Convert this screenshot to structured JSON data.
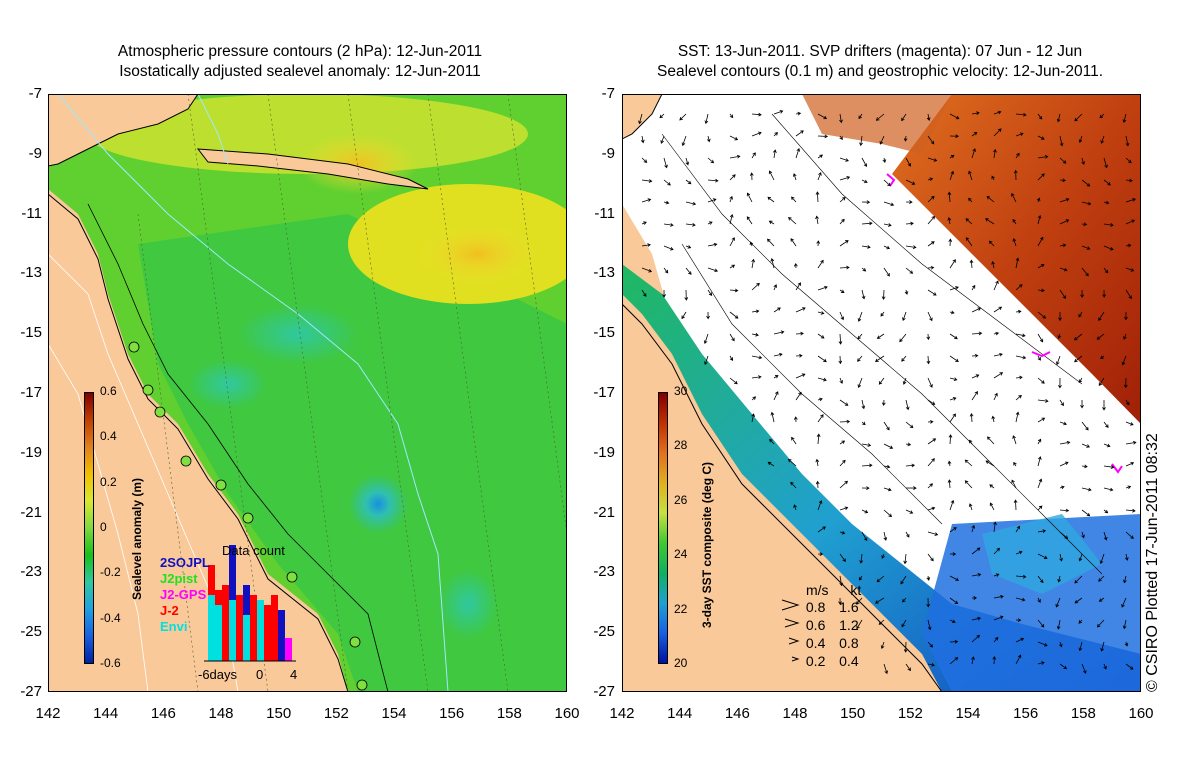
{
  "left": {
    "title_line1": "Atmospheric pressure contours (2 hPa): 12-Jun-2011",
    "title_line2": "Isostatically adjusted sealevel anomaly: 12-Jun-2011",
    "colorbar": {
      "title": "Sealevel anomaly (m)",
      "ticks": [
        "0.6",
        "0.4",
        "0.2",
        "0",
        "-0.2",
        "-0.4",
        "-0.6"
      ],
      "colors": [
        "#800000",
        "#c04000",
        "#e08020",
        "#f0c000",
        "#d8e830",
        "#80d840",
        "#18c018",
        "#30c8a0",
        "#20a0e0",
        "#1860e0",
        "#0020a0"
      ]
    },
    "histogram": {
      "title": "Data count",
      "xlabels": [
        "-6days",
        "0",
        "4"
      ],
      "legend": [
        {
          "name": "2SOJPL",
          "color": "#1010c0"
        },
        {
          "name": "J2pist",
          "color": "#20e020"
        },
        {
          "name": "J2-GPS",
          "color": "#ff00ff"
        },
        {
          "name": "J-2",
          "color": "#ff0000"
        },
        {
          "name": "Envi",
          "color": "#00e0e0"
        }
      ]
    }
  },
  "right": {
    "title_line1": "SST: 13-Jun-2011. SVP drifters (magenta): 07 Jun - 12 Jun",
    "title_line2": "Sealevel contours (0.1 m) and geostrophic velocity: 12-Jun-2011.",
    "colorbar": {
      "title": "3-day SST composite (deg C)",
      "ticks": [
        "30",
        "28",
        "26",
        "24",
        "22",
        "20"
      ],
      "colors": [
        "#800000",
        "#c03000",
        "#e07020",
        "#e0b020",
        "#c8e040",
        "#40c830",
        "#10b060",
        "#20a0d0",
        "#1860e0",
        "#0010a0"
      ]
    },
    "velocity_legend": {
      "header_ms": "m/s",
      "header_kt": "kt",
      "rows": [
        {
          "ms": "0.8",
          "kt": "1.6"
        },
        {
          "ms": "0.6",
          "kt": "1.2"
        },
        {
          "ms": "0.4",
          "kt": "0.8"
        },
        {
          "ms": "0.2",
          "kt": "0.4"
        }
      ]
    }
  },
  "axes": {
    "y_labels": [
      "-7",
      "-9",
      "-11",
      "-13",
      "-15",
      "-17",
      "-19",
      "-21",
      "-23",
      "-25",
      "-27"
    ],
    "x_labels": [
      "142",
      "144",
      "146",
      "148",
      "150",
      "152",
      "154",
      "156",
      "158",
      "160"
    ]
  },
  "copyright": "© CSIRO Plotted 17-Jun-2011 08:32",
  "colors": {
    "land": "#f9c99a",
    "coast": "#000000",
    "contour": "#9fe8ff",
    "drifter": "#ff00ff"
  }
}
